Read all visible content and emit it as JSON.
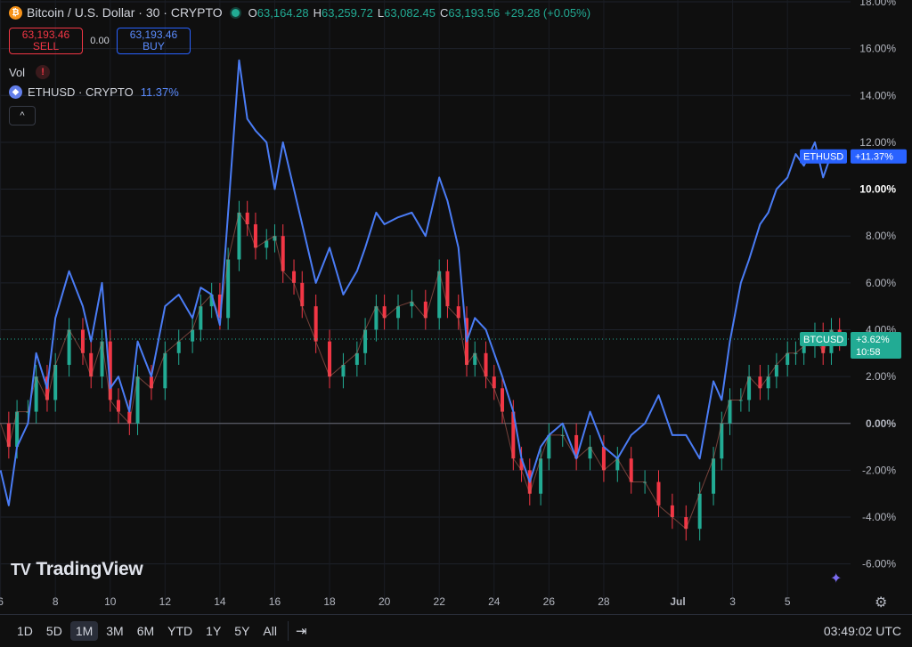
{
  "header": {
    "symbol_title": "Bitcoin / U.S. Dollar · 30 · CRYPTO",
    "coin_icon_glyph": "₿",
    "ohlc": [
      {
        "k": "O",
        "v": "63,164.28"
      },
      {
        "k": "H",
        "v": "63,259.72"
      },
      {
        "k": "L",
        "v": "63,082.45"
      },
      {
        "k": "C",
        "v": "63,193.56"
      },
      {
        "k": "",
        "v": "+29.28 (+0.05%)"
      }
    ]
  },
  "trade": {
    "sell_price": "63,193.46",
    "sell_label": "SELL",
    "spread": "0.00",
    "buy_price": "63,193.46",
    "buy_label": "BUY"
  },
  "vol_label": "Vol",
  "warn_glyph": "!",
  "compare": {
    "name": "ETHUSD · CRYPTO",
    "pct": "11.37%",
    "icon_glyph": "◆"
  },
  "collapse_glyph": "^",
  "logo": {
    "mark": "TV",
    "name": "TradingView"
  },
  "price_badges": {
    "eth": {
      "name": "ETHUSD",
      "value": "+11.37%"
    },
    "btc": {
      "name": "BTCUSD",
      "value": "+3.62%",
      "countdown": "10:58"
    }
  },
  "bottom": {
    "ranges": [
      "1D",
      "5D",
      "1M",
      "3M",
      "6M",
      "YTD",
      "1Y",
      "5Y",
      "All"
    ],
    "active_range": "1M",
    "clock": "03:49:02 UTC"
  },
  "chart_data": {
    "type": "line",
    "y_unit": "%",
    "ylim": [
      -7.0,
      18.0
    ],
    "y_ticks": [
      "18.00%",
      "16.00%",
      "14.00%",
      "12.00%",
      "10.00%",
      "8.00%",
      "6.00%",
      "4.00%",
      "2.00%",
      "0.00%",
      "-2.00%",
      "-4.00%",
      "-6.00%"
    ],
    "x_ticks": [
      "6",
      "8",
      "10",
      "12",
      "14",
      "16",
      "18",
      "20",
      "22",
      "24",
      "26",
      "28",
      "Jul",
      "3",
      "5"
    ],
    "baseline": 0,
    "series": [
      {
        "name": "ETHUSD",
        "color": "#4a7cf5",
        "x": [
          6,
          6.3,
          6.6,
          7.0,
          7.3,
          7.7,
          8.0,
          8.5,
          9.0,
          9.3,
          9.7,
          10.0,
          10.3,
          10.7,
          11.0,
          11.5,
          12.0,
          12.5,
          13.0,
          13.3,
          13.7,
          14.0,
          14.3,
          14.7,
          15.0,
          15.3,
          15.7,
          16.0,
          16.3,
          16.7,
          17.0,
          17.5,
          18.0,
          18.5,
          19.0,
          19.3,
          19.7,
          20.0,
          20.5,
          21.0,
          21.5,
          22.0,
          22.3,
          22.7,
          23.0,
          23.3,
          23.7,
          24.0,
          24.3,
          24.7,
          25.0,
          25.3,
          25.7,
          26.0,
          26.5,
          27.0,
          27.5,
          28.0,
          28.5,
          29.0,
          29.5,
          30.0,
          30.5,
          31.0,
          31.5,
          32.0,
          32.3,
          32.6,
          33.0,
          33.3,
          33.7,
          34.0,
          34.3,
          34.7,
          35.0,
          35.3,
          35.7,
          36.0,
          36.3,
          36.6
        ],
        "values": [
          -2.0,
          -3.5,
          -1.0,
          0.0,
          3.0,
          1.5,
          4.5,
          6.5,
          5.0,
          3.5,
          6.0,
          1.5,
          2.0,
          0.5,
          3.5,
          2.0,
          5.0,
          5.5,
          4.5,
          5.8,
          5.5,
          4.2,
          9.0,
          15.5,
          13.0,
          12.5,
          12.0,
          10.0,
          12.0,
          10.0,
          8.5,
          6.0,
          7.5,
          5.5,
          6.5,
          7.5,
          9.0,
          8.5,
          8.8,
          9.0,
          8.0,
          10.5,
          9.5,
          7.5,
          3.5,
          4.5,
          4.0,
          3.0,
          2.0,
          0.5,
          -1.5,
          -2.5,
          -1.0,
          -0.5,
          0.0,
          -1.5,
          0.5,
          -1.0,
          -1.5,
          -0.5,
          0.0,
          1.2,
          -0.5,
          -0.5,
          -1.5,
          1.8,
          1.0,
          3.5,
          6.0,
          7.0,
          8.5,
          9.0,
          10.0,
          10.5,
          11.5,
          11.0,
          12.0,
          10.5,
          11.5,
          11.4
        ]
      },
      {
        "name": "BTCUSD",
        "color": "#22ab94",
        "x": [
          6,
          6.3,
          6.6,
          7.0,
          7.3,
          7.7,
          8.0,
          8.5,
          9.0,
          9.3,
          9.7,
          10.0,
          10.3,
          10.7,
          11.0,
          11.5,
          12.0,
          12.5,
          13.0,
          13.3,
          13.7,
          14.0,
          14.3,
          14.7,
          15.0,
          15.3,
          15.7,
          16.0,
          16.3,
          16.7,
          17.0,
          17.5,
          18.0,
          18.5,
          19.0,
          19.3,
          19.7,
          20.0,
          20.5,
          21.0,
          21.5,
          22.0,
          22.3,
          22.7,
          23.0,
          23.3,
          23.7,
          24.0,
          24.3,
          24.7,
          25.0,
          25.3,
          25.7,
          26.0,
          26.5,
          27.0,
          27.5,
          28.0,
          28.5,
          29.0,
          29.5,
          30.0,
          30.5,
          31.0,
          31.5,
          32.0,
          32.3,
          32.6,
          33.0,
          33.3,
          33.7,
          34.0,
          34.3,
          34.7,
          35.0,
          35.3,
          35.7,
          36.0,
          36.3,
          36.6
        ],
        "values": [
          0.0,
          -1.0,
          0.5,
          0.5,
          2.0,
          1.0,
          2.5,
          4.0,
          3.0,
          2.0,
          3.5,
          1.0,
          0.5,
          0.0,
          2.0,
          1.5,
          3.0,
          3.5,
          4.0,
          5.0,
          5.5,
          4.5,
          7.0,
          9.0,
          8.5,
          7.5,
          7.8,
          8.0,
          6.5,
          6.0,
          5.0,
          3.5,
          2.0,
          2.5,
          3.0,
          4.0,
          5.0,
          4.5,
          5.0,
          5.2,
          4.5,
          6.5,
          5.0,
          4.5,
          2.5,
          3.0,
          2.0,
          1.5,
          0.5,
          -1.5,
          -2.0,
          -3.0,
          -1.5,
          -0.5,
          -0.5,
          -1.5,
          -1.0,
          -2.0,
          -1.5,
          -2.5,
          -2.5,
          -3.5,
          -4.0,
          -4.5,
          -3.0,
          -1.5,
          0.0,
          1.0,
          1.0,
          2.0,
          1.5,
          2.0,
          2.5,
          3.0,
          3.0,
          3.3,
          3.8,
          3.0,
          4.0,
          3.6
        ]
      }
    ]
  }
}
